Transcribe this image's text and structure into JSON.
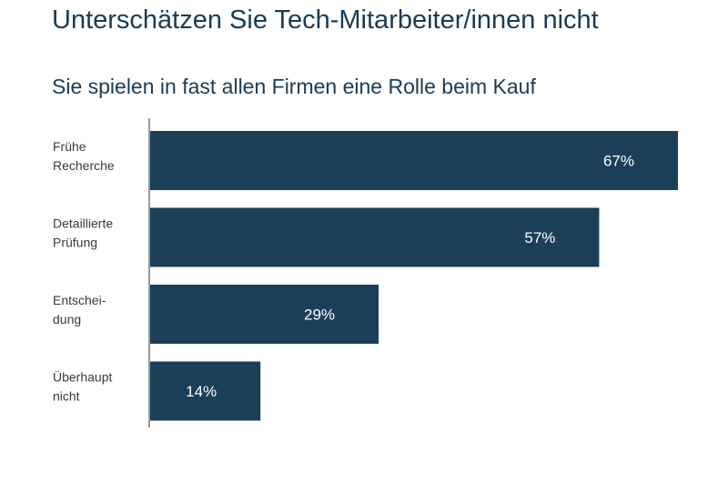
{
  "title": "Unterschätzen Sie Tech-Mitarbeiter/innen nicht",
  "subtitle": "Sie spielen in fast allen Firmen eine Rolle beim Kauf",
  "colors": {
    "bar": "#1c3f59",
    "axis": "#9a9a9a",
    "title": "#1c3b53"
  },
  "chart_data": {
    "type": "bar",
    "orientation": "horizontal",
    "categories": [
      [
        "Frühe",
        "Recherche"
      ],
      [
        "Detaillierte",
        "Prüfung"
      ],
      [
        "Entschei-",
        "dung"
      ],
      [
        "Überhaupt",
        "nicht"
      ]
    ],
    "values": [
      67,
      57,
      29,
      14
    ],
    "value_labels": [
      "67%",
      "57%",
      "29%",
      "14%"
    ],
    "xlim": [
      0,
      67
    ],
    "grid": false,
    "legend": "none"
  }
}
